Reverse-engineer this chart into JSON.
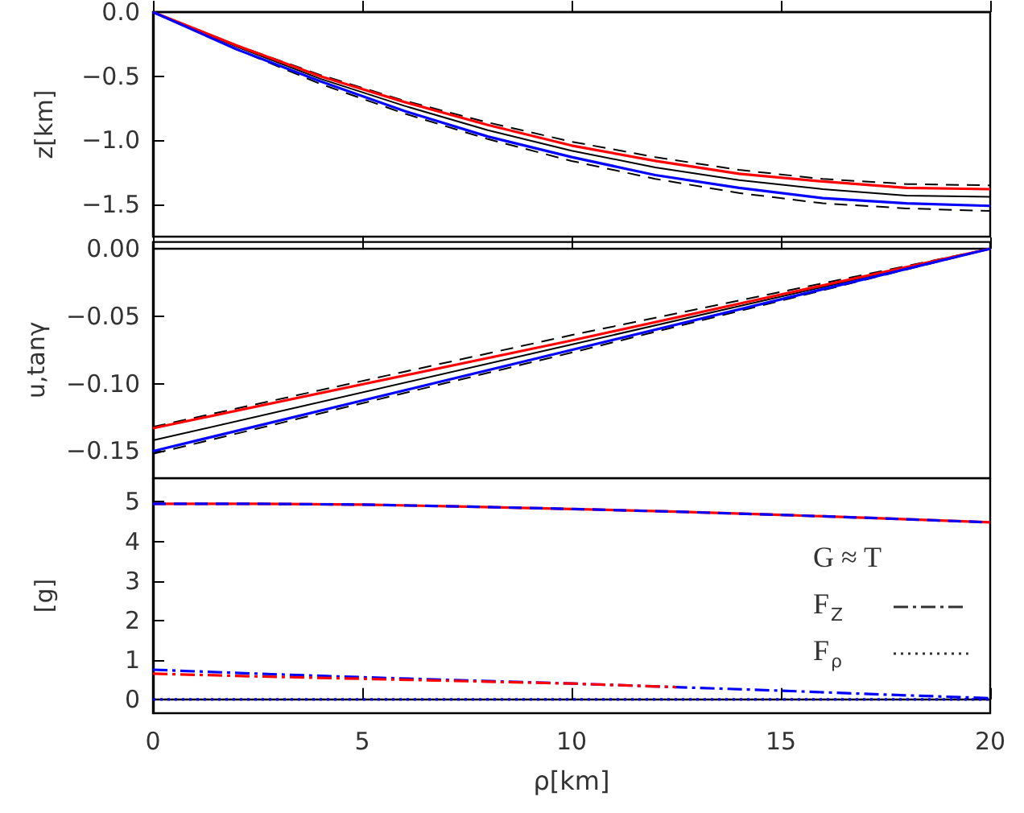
{
  "chart_data": [
    {
      "type": "line",
      "ylabel": "z[km]",
      "x": [
        0,
        2,
        4,
        6,
        8,
        10,
        12,
        14,
        16,
        18,
        20
      ],
      "xlim": [
        0,
        20
      ],
      "xticks": [
        0,
        5,
        10,
        15,
        20
      ],
      "ylim": [
        -1.75,
        0
      ],
      "yticks": [
        {
          "value": -1.5,
          "label": "−1.5"
        },
        {
          "value": -1,
          "label": "−1.0"
        },
        {
          "value": -0.5,
          "label": "−0.5"
        },
        {
          "value": 0,
          "label": "0.0"
        }
      ],
      "tick_labels": "y",
      "series": [
        {
          "color": "#000000",
          "line_style": "dashed",
          "values": [
            0,
            -0.26,
            -0.49,
            -0.69,
            -0.86,
            -1.01,
            -1.13,
            -1.23,
            -1.3,
            -1.34,
            -1.35
          ]
        },
        {
          "color": "#000000",
          "line_style": "dashed",
          "values": [
            0,
            -0.29,
            -0.56,
            -0.79,
            -0.99,
            -1.16,
            -1.3,
            -1.41,
            -1.49,
            -1.53,
            -1.55
          ]
        },
        {
          "color": "#000000",
          "line_style": "solid",
          "values": [
            0,
            -0.27,
            -0.52,
            -0.73,
            -0.92,
            -1.08,
            -1.21,
            -1.31,
            -1.38,
            -1.43,
            -1.44
          ]
        },
        {
          "color": "#ff0000",
          "line_style": "solid",
          "values": [
            0,
            -0.26,
            -0.5,
            -0.7,
            -0.88,
            -1.04,
            -1.16,
            -1.26,
            -1.32,
            -1.37,
            -1.38
          ]
        },
        {
          "color": "#0000ff",
          "line_style": "solid",
          "values": [
            0,
            -0.29,
            -0.54,
            -0.77,
            -0.97,
            -1.13,
            -1.27,
            -1.37,
            -1.45,
            -1.49,
            -1.51
          ]
        }
      ]
    },
    {
      "type": "line",
      "ylabel": "u,tanγ",
      "x": [
        0,
        10,
        20
      ],
      "xlim": [
        0,
        20
      ],
      "xticks": [
        0,
        5,
        10,
        15,
        20
      ],
      "ylim": [
        -0.17,
        0.005
      ],
      "yticks": [
        {
          "value": -0.15,
          "label": "−0.15"
        },
        {
          "value": -0.1,
          "label": "−0.10"
        },
        {
          "value": -0.05,
          "label": "−0.05"
        },
        {
          "value": 0,
          "label": "0.00"
        }
      ],
      "tick_labels": "y",
      "series": [
        {
          "color": "#000000",
          "line_style": "dashed",
          "values": [
            -0.132,
            -0.064,
            0
          ]
        },
        {
          "color": "#000000",
          "line_style": "dashed",
          "values": [
            -0.152,
            -0.077,
            0
          ]
        },
        {
          "color": "#000000",
          "line_style": "solid",
          "values": [
            -0.142,
            -0.071,
            0
          ]
        },
        {
          "color": "#ff0000",
          "line_style": "solid",
          "values": [
            -0.133,
            -0.068,
            0
          ]
        },
        {
          "color": "#0000ff",
          "line_style": "solid",
          "values": [
            -0.15,
            -0.075,
            0
          ]
        }
      ]
    },
    {
      "type": "line",
      "ylabel": "[g]",
      "xlabel": "ρ[km]",
      "x": [
        0,
        2.5,
        5,
        7.5,
        10,
        12.5,
        15,
        17.5,
        20
      ],
      "xlim": [
        0,
        20
      ],
      "xticks": [
        0,
        5,
        10,
        15,
        20
      ],
      "ylim": [
        -0.35,
        5.6
      ],
      "yticks": [
        0,
        1,
        2,
        3,
        4,
        5
      ],
      "annotations": [
        "G ≈ T",
        "F$_{Z}$",
        "F$_{ρ}$"
      ],
      "series": [
        {
          "color": "#ff0000",
          "line_style": "solid",
          "values": [
            4.95,
            4.95,
            4.93,
            4.88,
            4.82,
            4.75,
            4.67,
            4.58,
            4.48
          ]
        },
        {
          "color": "#0000ff",
          "line_style": "dashed",
          "values": [
            4.95,
            4.95,
            4.93,
            4.88,
            4.82,
            4.75,
            4.67,
            4.58,
            4.48
          ]
        },
        {
          "color": "#0000ff",
          "line_style": "dashdot",
          "values": [
            0.75,
            0.65,
            0.56,
            0.48,
            0.4,
            0.31,
            0.22,
            0.12,
            0.03
          ]
        },
        {
          "color": "#ff0000",
          "line_style": "dashdot",
          "values": [
            0.65,
            0.58,
            0.52,
            0.46,
            0.4,
            0.31,
            null,
            null,
            null
          ]
        },
        {
          "color": "#0000ff",
          "line_style": "dotted",
          "values": [
            0,
            0,
            0,
            0,
            0,
            0,
            0,
            0,
            0
          ]
        }
      ]
    }
  ]
}
